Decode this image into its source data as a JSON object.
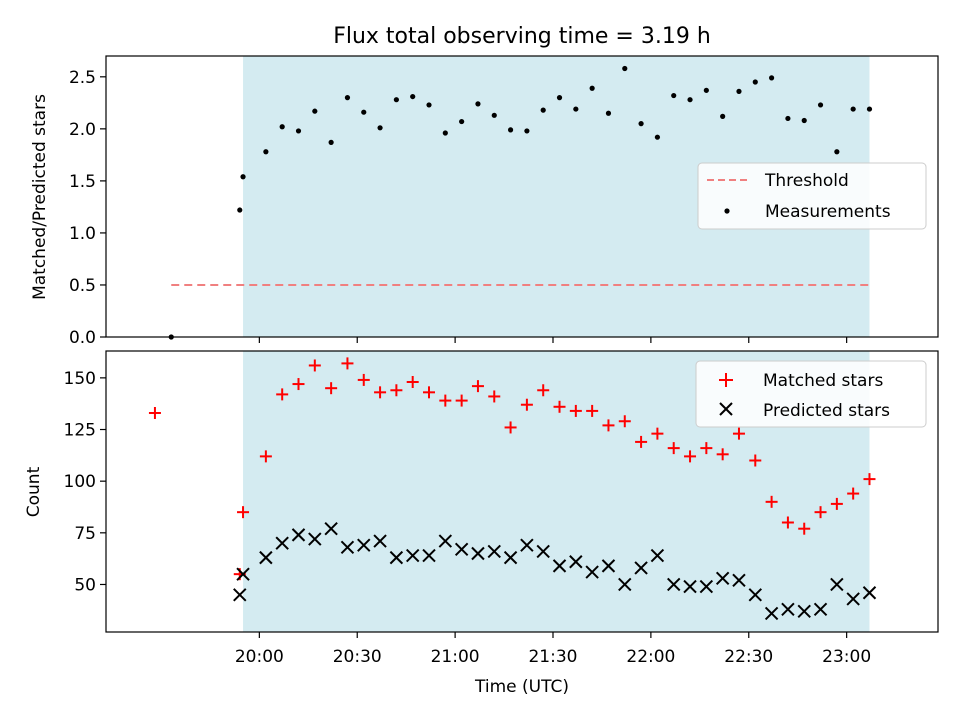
{
  "title": "Flux total observing time = 3.19 h",
  "chart_data": [
    {
      "type": "scatter",
      "ylabel": "Matched/Predicted stars",
      "ylim": [
        0,
        2.7
      ],
      "yticks": [
        0.0,
        0.5,
        1.0,
        1.5,
        2.0,
        2.5
      ],
      "ytick_labels": [
        "0.0",
        "0.5",
        "1.0",
        "1.5",
        "2.0",
        "2.5"
      ],
      "xlim": [
        "19:13",
        "23:28"
      ],
      "shaded_region": [
        "19:55",
        "23:07"
      ],
      "threshold": {
        "value": 0.5,
        "x_range": [
          "19:33",
          "23:07"
        ]
      },
      "legend": {
        "position": "center-right",
        "entries": [
          "Threshold",
          "Measurements"
        ]
      },
      "series": [
        {
          "name": "Measurements",
          "color": "#000000",
          "marker": "dot",
          "points": [
            [
              "19:33",
              0.0
            ],
            [
              "19:54",
              1.22
            ],
            [
              "19:55",
              1.54
            ],
            [
              "20:02",
              1.78
            ],
            [
              "20:07",
              2.02
            ],
            [
              "20:12",
              1.98
            ],
            [
              "20:17",
              2.17
            ],
            [
              "20:22",
              1.87
            ],
            [
              "20:27",
              2.3
            ],
            [
              "20:32",
              2.16
            ],
            [
              "20:37",
              2.01
            ],
            [
              "20:42",
              2.28
            ],
            [
              "20:47",
              2.31
            ],
            [
              "20:52",
              2.23
            ],
            [
              "20:57",
              1.96
            ],
            [
              "21:02",
              2.07
            ],
            [
              "21:07",
              2.24
            ],
            [
              "21:12",
              2.13
            ],
            [
              "21:17",
              1.99
            ],
            [
              "21:22",
              1.98
            ],
            [
              "21:27",
              2.18
            ],
            [
              "21:32",
              2.3
            ],
            [
              "21:37",
              2.19
            ],
            [
              "21:42",
              2.39
            ],
            [
              "21:47",
              2.15
            ],
            [
              "21:52",
              2.58
            ],
            [
              "21:57",
              2.05
            ],
            [
              "22:02",
              1.92
            ],
            [
              "22:07",
              2.32
            ],
            [
              "22:12",
              2.28
            ],
            [
              "22:17",
              2.37
            ],
            [
              "22:22",
              2.12
            ],
            [
              "22:27",
              2.36
            ],
            [
              "22:32",
              2.45
            ],
            [
              "22:37",
              2.49
            ],
            [
              "22:42",
              2.1
            ],
            [
              "22:47",
              2.08
            ],
            [
              "22:52",
              2.23
            ],
            [
              "22:57",
              1.78
            ],
            [
              "23:02",
              2.19
            ],
            [
              "23:07",
              2.19
            ]
          ]
        },
        {
          "name": "Threshold",
          "color": "#f08080",
          "style": "dashed",
          "value": 0.5
        }
      ]
    },
    {
      "type": "scatter",
      "xlabel": "Time (UTC)",
      "ylabel": "Count",
      "ylim": [
        27,
        163
      ],
      "yticks": [
        50,
        75,
        100,
        125,
        150
      ],
      "ytick_labels": [
        "50",
        "75",
        "100",
        "125",
        "150"
      ],
      "xlim": [
        "19:13",
        "23:28"
      ],
      "xticks": [
        "20:00",
        "20:30",
        "21:00",
        "21:30",
        "22:00",
        "22:30",
        "23:00"
      ],
      "xtick_labels": [
        "20:00",
        "20:30",
        "21:00",
        "21:30",
        "22:00",
        "22:30",
        "23:00"
      ],
      "shaded_region": [
        "19:55",
        "23:07"
      ],
      "legend": {
        "position": "top-right",
        "entries": [
          "Matched stars",
          "Predicted stars"
        ]
      },
      "series": [
        {
          "name": "Matched stars",
          "color": "#ff0000",
          "marker": "plus",
          "points": [
            [
              "19:28",
              133
            ],
            [
              "19:54",
              55
            ],
            [
              "19:55",
              85
            ],
            [
              "20:02",
              112
            ],
            [
              "20:07",
              142
            ],
            [
              "20:12",
              147
            ],
            [
              "20:17",
              156
            ],
            [
              "20:22",
              145
            ],
            [
              "20:27",
              157
            ],
            [
              "20:32",
              149
            ],
            [
              "20:37",
              143
            ],
            [
              "20:42",
              144
            ],
            [
              "20:47",
              148
            ],
            [
              "20:52",
              143
            ],
            [
              "20:57",
              139
            ],
            [
              "21:02",
              139
            ],
            [
              "21:07",
              146
            ],
            [
              "21:12",
              141
            ],
            [
              "21:17",
              126
            ],
            [
              "21:22",
              137
            ],
            [
              "21:27",
              144
            ],
            [
              "21:32",
              136
            ],
            [
              "21:37",
              134
            ],
            [
              "21:42",
              134
            ],
            [
              "21:47",
              127
            ],
            [
              "21:52",
              129
            ],
            [
              "21:57",
              119
            ],
            [
              "22:02",
              123
            ],
            [
              "22:07",
              116
            ],
            [
              "22:12",
              112
            ],
            [
              "22:17",
              116
            ],
            [
              "22:22",
              113
            ],
            [
              "22:27",
              123
            ],
            [
              "22:32",
              110
            ],
            [
              "22:37",
              90
            ],
            [
              "22:42",
              80
            ],
            [
              "22:47",
              77
            ],
            [
              "22:52",
              85
            ],
            [
              "22:57",
              89
            ],
            [
              "23:02",
              94
            ],
            [
              "23:07",
              101
            ]
          ]
        },
        {
          "name": "Predicted stars",
          "color": "#000000",
          "marker": "x",
          "points": [
            [
              "19:54",
              45
            ],
            [
              "19:55",
              55
            ],
            [
              "20:02",
              63
            ],
            [
              "20:07",
              70
            ],
            [
              "20:12",
              74
            ],
            [
              "20:17",
              72
            ],
            [
              "20:22",
              77
            ],
            [
              "20:27",
              68
            ],
            [
              "20:32",
              69
            ],
            [
              "20:37",
              71
            ],
            [
              "20:42",
              63
            ],
            [
              "20:47",
              64
            ],
            [
              "20:52",
              64
            ],
            [
              "20:57",
              71
            ],
            [
              "21:02",
              67
            ],
            [
              "21:07",
              65
            ],
            [
              "21:12",
              66
            ],
            [
              "21:17",
              63
            ],
            [
              "21:22",
              69
            ],
            [
              "21:27",
              66
            ],
            [
              "21:32",
              59
            ],
            [
              "21:37",
              61
            ],
            [
              "21:42",
              56
            ],
            [
              "21:47",
              59
            ],
            [
              "21:52",
              50
            ],
            [
              "21:57",
              58
            ],
            [
              "22:02",
              64
            ],
            [
              "22:07",
              50
            ],
            [
              "22:12",
              49
            ],
            [
              "22:17",
              49
            ],
            [
              "22:22",
              53
            ],
            [
              "22:27",
              52
            ],
            [
              "22:32",
              45
            ],
            [
              "22:37",
              36
            ],
            [
              "22:42",
              38
            ],
            [
              "22:47",
              37
            ],
            [
              "22:52",
              38
            ],
            [
              "22:57",
              50
            ],
            [
              "23:02",
              43
            ],
            [
              "23:07",
              46
            ]
          ]
        }
      ]
    }
  ],
  "colors": {
    "shade": "#d4ebf1",
    "threshold": "#f08080",
    "matched": "#ff0000",
    "predicted": "#000000"
  }
}
